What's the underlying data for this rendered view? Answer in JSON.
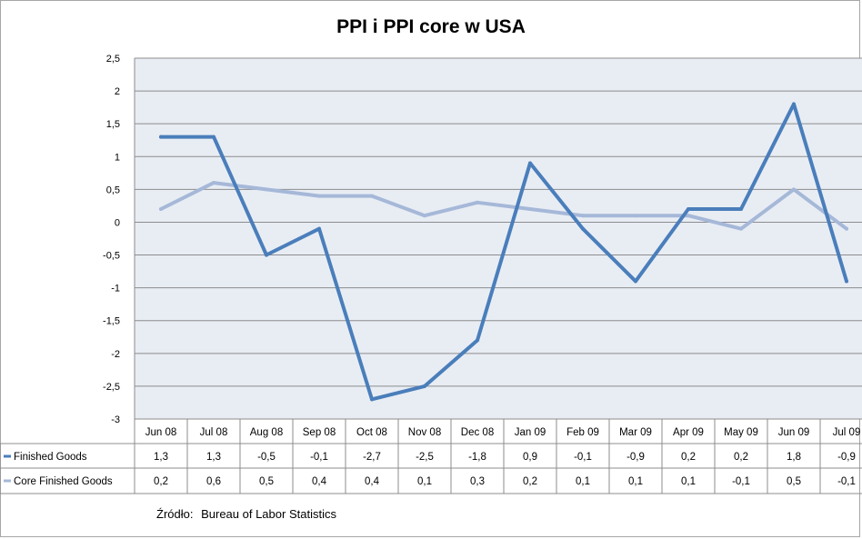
{
  "chart_data": {
    "type": "line",
    "title": "PPI i PPI core w USA",
    "categories": [
      "Jun 08",
      "Jul 08",
      "Aug 08",
      "Sep 08",
      "Oct 08",
      "Nov 08",
      "Dec 08",
      "Jan 09",
      "Feb 09",
      "Mar 09",
      "Apr 09",
      "May 09",
      "Jun 09",
      "Jul 09"
    ],
    "series": [
      {
        "name": "Finished Goods",
        "values": [
          1.3,
          1.3,
          -0.5,
          -0.1,
          -2.7,
          -2.5,
          -1.8,
          0.9,
          -0.1,
          -0.9,
          0.2,
          0.2,
          1.8,
          -0.9
        ],
        "labels": [
          "1,3",
          "1,3",
          "-0,5",
          "-0,1",
          "-2,7",
          "-2,5",
          "-1,8",
          "0,9",
          "-0,1",
          "-0,9",
          "0,2",
          "0,2",
          "1,8",
          "-0,9"
        ],
        "color": "#4a7ebb"
      },
      {
        "name": "Core Finished Goods",
        "values": [
          0.2,
          0.6,
          0.5,
          0.4,
          0.4,
          0.1,
          0.3,
          0.2,
          0.1,
          0.1,
          0.1,
          -0.1,
          0.5,
          -0.1
        ],
        "labels": [
          "0,2",
          "0,6",
          "0,5",
          "0,4",
          "0,4",
          "0,1",
          "0,3",
          "0,2",
          "0,1",
          "0,1",
          "0,1",
          "-0,1",
          "0,5",
          "-0,1"
        ],
        "color": "#a6b8d8"
      }
    ],
    "ylim": [
      -3,
      2.5
    ],
    "yticks": [
      2.5,
      2,
      1.5,
      1,
      0.5,
      0,
      -0.5,
      -1,
      -1.5,
      -2,
      -2.5,
      -3
    ],
    "ytick_labels": [
      "2,5",
      "2",
      "1,5",
      "1",
      "0,5",
      "0",
      "-0,5",
      "-1",
      "-1,5",
      "-2",
      "-2,5",
      "-3"
    ],
    "grid": true,
    "plot_background": "#e8edf4",
    "legend": "data-table"
  },
  "source": {
    "label": "Źródło:",
    "text": "Bureau of Labor Statistics"
  }
}
